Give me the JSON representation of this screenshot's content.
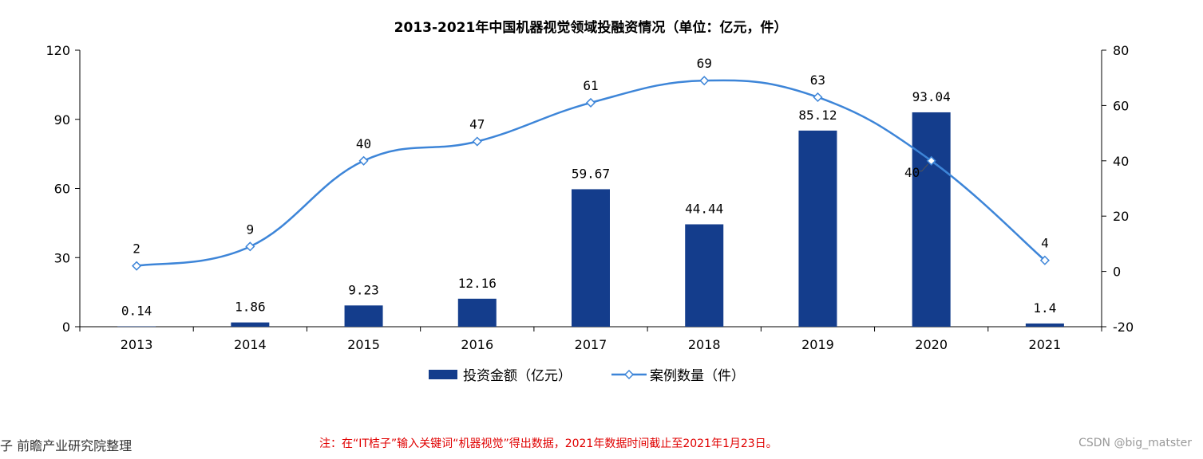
{
  "chart_data": {
    "type": "bar",
    "title": "2013-2021年中国机器视觉领域投融资情况（单位：亿元，件）",
    "categories": [
      "2013",
      "2014",
      "2015",
      "2016",
      "2017",
      "2018",
      "2019",
      "2020",
      "2021"
    ],
    "series": [
      {
        "name": "投资金额（亿元）",
        "type": "bar",
        "axis": "left",
        "color": "#143d8c",
        "values": [
          0.14,
          1.86,
          9.23,
          12.16,
          59.67,
          44.44,
          85.12,
          93.04,
          1.4
        ],
        "labels": [
          "0.14",
          "1.86",
          "9.23",
          "12.16",
          "59.67",
          "44.44",
          "85.12",
          "93.04",
          "1.4"
        ]
      },
      {
        "name": "案例数量（件）",
        "type": "line",
        "axis": "right",
        "color": "#3d85d8",
        "values": [
          2,
          9,
          40,
          47,
          61,
          69,
          63,
          40,
          4
        ],
        "labels": [
          "2",
          "9",
          "40",
          "47",
          "61",
          "69",
          "63",
          "40",
          "4"
        ]
      }
    ],
    "y_left": {
      "min": 0,
      "max": 120,
      "ticks": [
        "0",
        "30",
        "60",
        "90",
        "120"
      ]
    },
    "y_right": {
      "min": -20,
      "max": 80,
      "ticks": [
        "-20",
        "0",
        "20",
        "40",
        "60",
        "80"
      ]
    },
    "legend_position": "bottom",
    "grid": false
  },
  "footer": {
    "source": "子  前瞻产业研究院整理",
    "note": "注：在“IT桔子”输入关键词“机器视觉”得出数据，2021年数据时间截止至2021年1月23日。",
    "credit": "CSDN @big_matster"
  }
}
